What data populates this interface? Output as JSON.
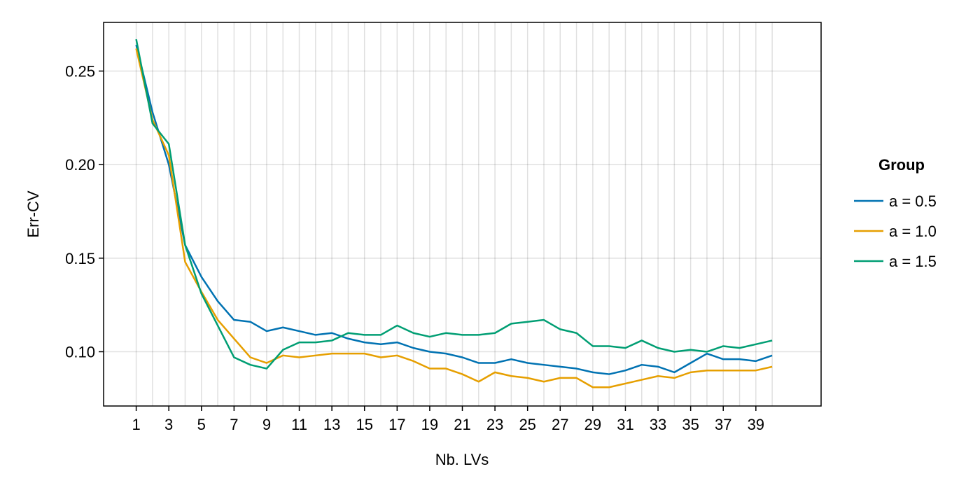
{
  "chart_data": {
    "type": "line",
    "xlabel": "Nb. LVs",
    "ylabel": "Err-CV",
    "xlim": [
      -1,
      43
    ],
    "ylim": [
      0.071,
      0.276
    ],
    "x_ticks": [
      1,
      3,
      5,
      7,
      9,
      11,
      13,
      15,
      17,
      19,
      21,
      23,
      25,
      27,
      29,
      31,
      33,
      35,
      37,
      39
    ],
    "y_ticks": [
      0.1,
      0.15,
      0.2,
      0.25
    ],
    "y_tick_labels": [
      "0.10",
      "0.15",
      "0.20",
      "0.25"
    ],
    "grid": true,
    "legend": {
      "title": "Group",
      "position": "right"
    },
    "x": [
      1,
      2,
      3,
      4,
      5,
      6,
      7,
      8,
      9,
      10,
      11,
      12,
      13,
      14,
      15,
      16,
      17,
      18,
      19,
      20,
      21,
      22,
      23,
      24,
      25,
      26,
      27,
      28,
      29,
      30,
      31,
      32,
      33,
      34,
      35,
      36,
      37,
      38,
      39,
      40
    ],
    "series": [
      {
        "name": "a = 0.5",
        "color": "#0072b2",
        "values": [
          0.264,
          0.228,
          0.2,
          0.157,
          0.14,
          0.127,
          0.117,
          0.116,
          0.111,
          0.113,
          0.111,
          0.109,
          0.11,
          0.107,
          0.105,
          0.104,
          0.105,
          0.102,
          0.1,
          0.099,
          0.097,
          0.094,
          0.094,
          0.096,
          0.094,
          0.093,
          0.092,
          0.091,
          0.089,
          0.088,
          0.09,
          0.093,
          0.092,
          0.089,
          0.094,
          0.099,
          0.096,
          0.096,
          0.095,
          0.098
        ]
      },
      {
        "name": "a = 1.0",
        "color": "#e69f00",
        "values": [
          0.262,
          0.224,
          0.205,
          0.148,
          0.132,
          0.117,
          0.107,
          0.097,
          0.094,
          0.098,
          0.097,
          0.098,
          0.099,
          0.099,
          0.099,
          0.097,
          0.098,
          0.095,
          0.091,
          0.091,
          0.088,
          0.084,
          0.089,
          0.087,
          0.086,
          0.084,
          0.086,
          0.086,
          0.081,
          0.081,
          0.083,
          0.085,
          0.087,
          0.086,
          0.089,
          0.09,
          0.09,
          0.09,
          0.09,
          0.092
        ]
      },
      {
        "name": "a = 1.5",
        "color": "#009e73",
        "values": [
          0.267,
          0.222,
          0.211,
          0.157,
          0.131,
          0.114,
          0.097,
          0.093,
          0.091,
          0.101,
          0.105,
          0.105,
          0.106,
          0.11,
          0.109,
          0.109,
          0.114,
          0.11,
          0.108,
          0.11,
          0.109,
          0.109,
          0.11,
          0.115,
          0.116,
          0.117,
          0.112,
          0.11,
          0.103,
          0.103,
          0.102,
          0.106,
          0.102,
          0.1,
          0.101,
          0.1,
          0.103,
          0.102,
          0.104,
          0.106
        ]
      }
    ]
  }
}
